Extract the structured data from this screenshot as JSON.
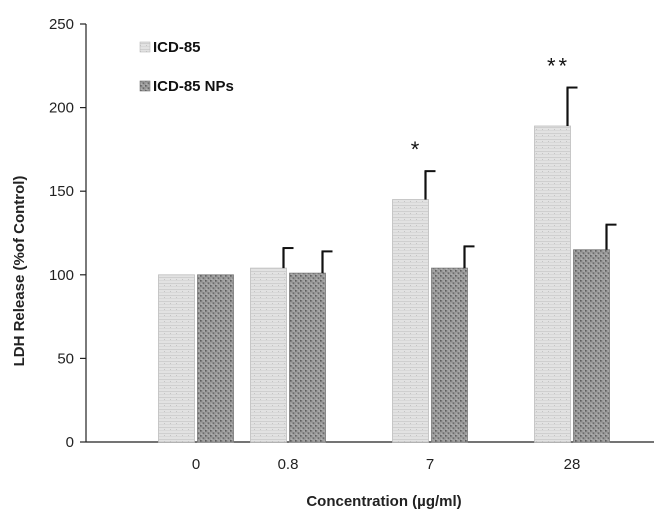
{
  "chart_data": {
    "type": "bar",
    "categories": [
      "0",
      "0.8",
      "7",
      "28"
    ],
    "series": [
      {
        "name": "ICD-85",
        "values": [
          100,
          104,
          145,
          189
        ],
        "errors": [
          0,
          12,
          17,
          23
        ],
        "color": "#dcdcdc"
      },
      {
        "name": "ICD-85 NPs",
        "values": [
          100,
          101,
          104,
          115
        ],
        "errors": [
          0,
          13,
          13,
          15
        ],
        "color": "#8f8f8f"
      }
    ],
    "xlabel": "Concentration (µg/ml)",
    "ylabel": "LDH Release (%of Control)",
    "ylim": [
      0,
      250
    ],
    "yticks": [
      0,
      50,
      100,
      150,
      200,
      250
    ],
    "grid": false,
    "legend_position": "top-left",
    "annotations": [
      {
        "category": "7",
        "series": "ICD-85",
        "text": "*"
      },
      {
        "category": "28",
        "series": "ICD-85",
        "text": "**"
      }
    ]
  }
}
